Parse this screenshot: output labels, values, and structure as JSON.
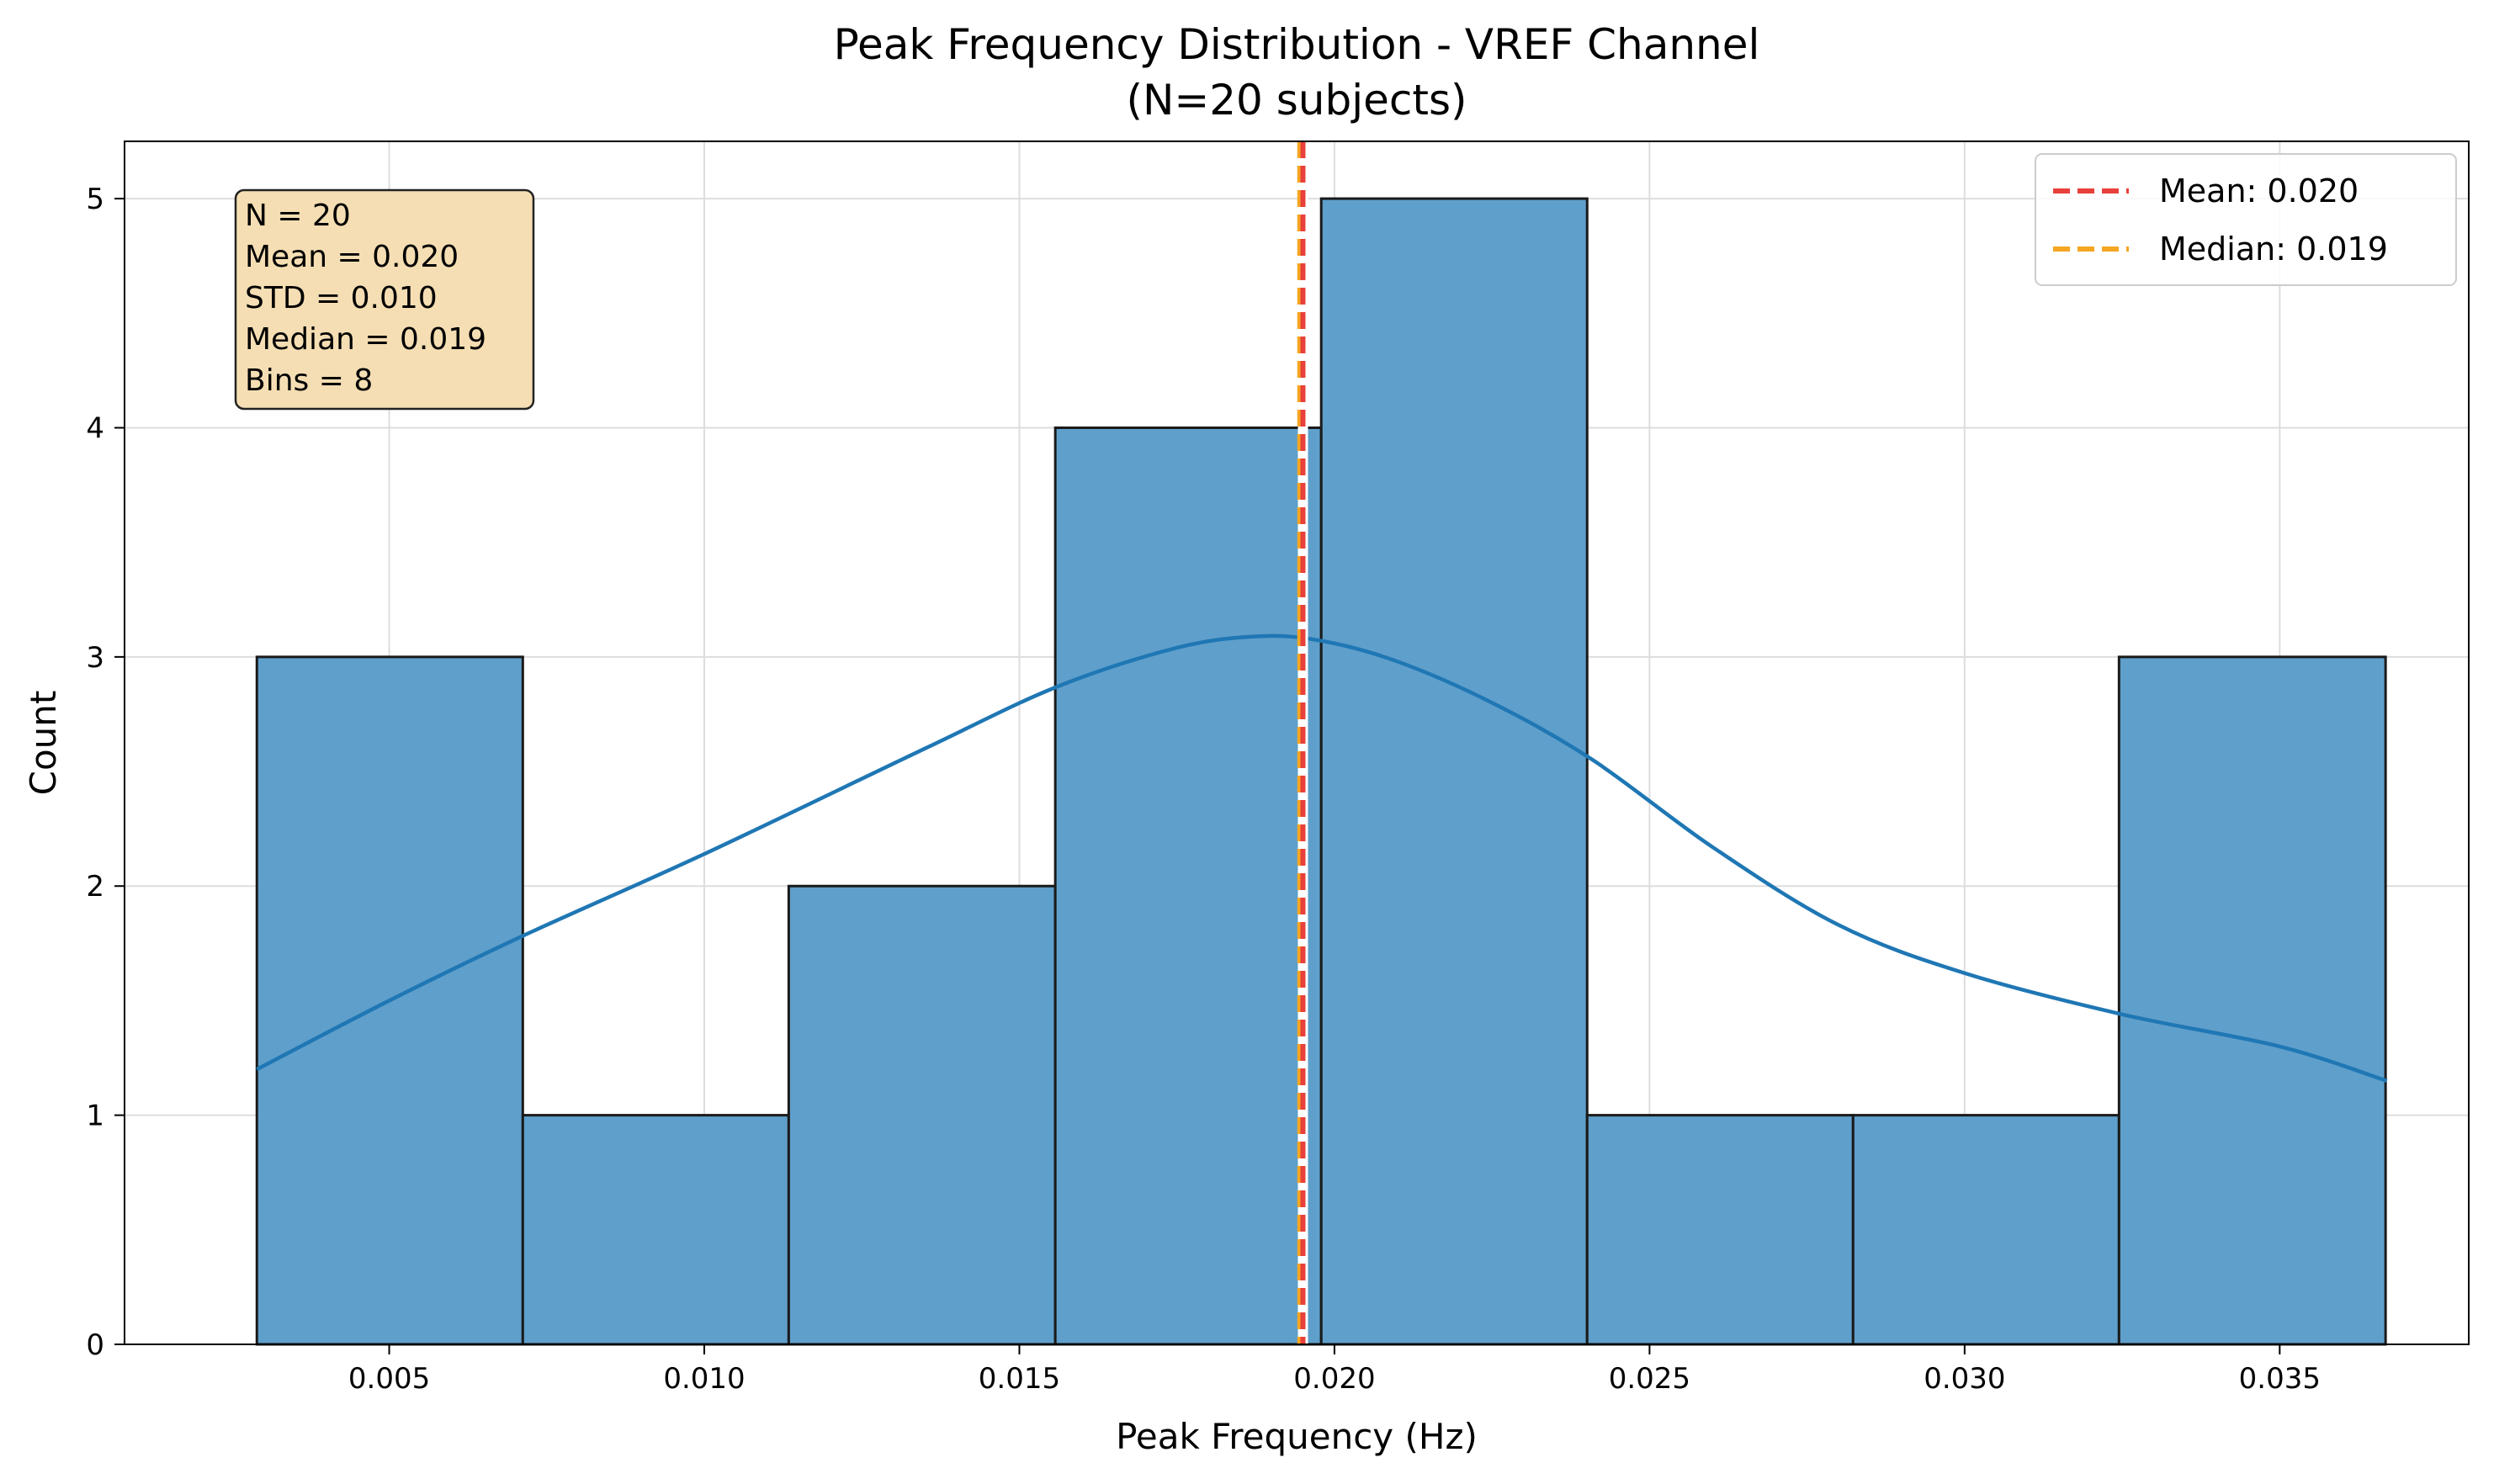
{
  "chart_data": {
    "type": "bar",
    "title": "Peak Frequency Distribution - VREF Channel",
    "subtitle": "(N=20 subjects)",
    "xlabel": "Peak Frequency (Hz)",
    "ylabel": "Count",
    "xlim": [
      0.0008,
      0.038
    ],
    "ylim": [
      0,
      5.25
    ],
    "xticks": [
      0.005,
      0.01,
      0.015,
      0.02,
      0.025,
      0.03,
      0.035
    ],
    "xtick_labels": [
      "0.005",
      "0.010",
      "0.015",
      "0.020",
      "0.025",
      "0.030",
      "0.035"
    ],
    "yticks": [
      0,
      1,
      2,
      3,
      4,
      5
    ],
    "ytick_labels": [
      "0",
      "1",
      "2",
      "3",
      "4",
      "5"
    ],
    "bin_edges": [
      0.0029,
      0.00712,
      0.01134,
      0.01557,
      0.01979,
      0.02401,
      0.02823,
      0.03245,
      0.03668
    ],
    "counts": [
      3,
      1,
      2,
      4,
      5,
      1,
      1,
      3
    ],
    "bar_color": "#5f9fcb",
    "kde": {
      "x": [
        0.0029,
        0.005,
        0.0071,
        0.01,
        0.0135,
        0.0156,
        0.0175,
        0.0188,
        0.0198,
        0.021,
        0.0225,
        0.0241,
        0.026,
        0.028,
        0.03,
        0.0325,
        0.035,
        0.0367
      ],
      "y": [
        1.2,
        1.5,
        1.78,
        2.14,
        2.6,
        2.87,
        3.04,
        3.09,
        3.07,
        2.98,
        2.8,
        2.55,
        2.17,
        1.83,
        1.62,
        1.44,
        1.3,
        1.15
      ],
      "color": "#1f77b4"
    },
    "mean": 0.0195,
    "median": 0.01945,
    "mean_color": "#e8403a",
    "median_color": "#f5a623",
    "legend": {
      "position": "top-right",
      "entries": [
        {
          "label": "Mean: 0.020",
          "color": "#e8403a"
        },
        {
          "label": "Median: 0.019",
          "color": "#f5a623"
        }
      ]
    },
    "stats_box": {
      "lines": [
        "N = 20",
        "Mean = 0.020",
        "STD = 0.010",
        "Median = 0.019",
        "Bins = 8"
      ],
      "background": "#f5deb3"
    },
    "grid": true
  }
}
